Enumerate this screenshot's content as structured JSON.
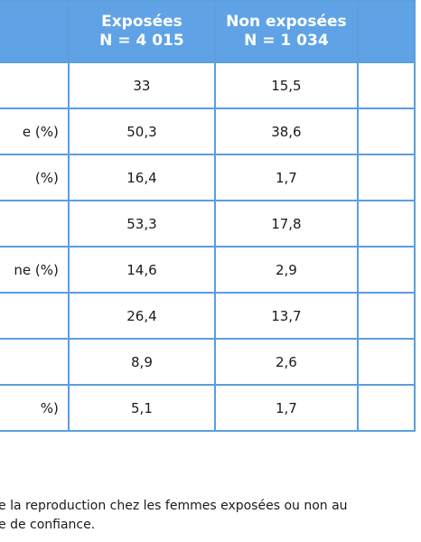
{
  "table": {
    "headers": [
      {
        "line1": "",
        "line2": ""
      },
      {
        "line1": "Exposées",
        "line2": "N = 4 015"
      },
      {
        "line1": "Non exposées",
        "line2": "N = 1 034"
      },
      {
        "line1": "",
        "line2": ""
      }
    ],
    "rows": [
      {
        "label": "",
        "exposed": "33",
        "non_exposed": "15,5"
      },
      {
        "label": "e (%)",
        "exposed": "50,3",
        "non_exposed": "38,6"
      },
      {
        "label": "(%)",
        "exposed": "16,4",
        "non_exposed": "1,7"
      },
      {
        "label": "",
        "exposed": "53,3",
        "non_exposed": "17,8"
      },
      {
        "label": "ne (%)",
        "exposed": "14,6",
        "non_exposed": "2,9"
      },
      {
        "label": "",
        "exposed": "26,4",
        "non_exposed": "13,7"
      },
      {
        "label": "",
        "exposed": "8,9",
        "non_exposed": "2,6"
      },
      {
        "label": "%)",
        "exposed": "5,1",
        "non_exposed": "1,7"
      }
    ]
  },
  "footnote": {
    "line1": "e la reproduction chez les femmes exposées ou non au",
    "line2": "e de confiance."
  }
}
